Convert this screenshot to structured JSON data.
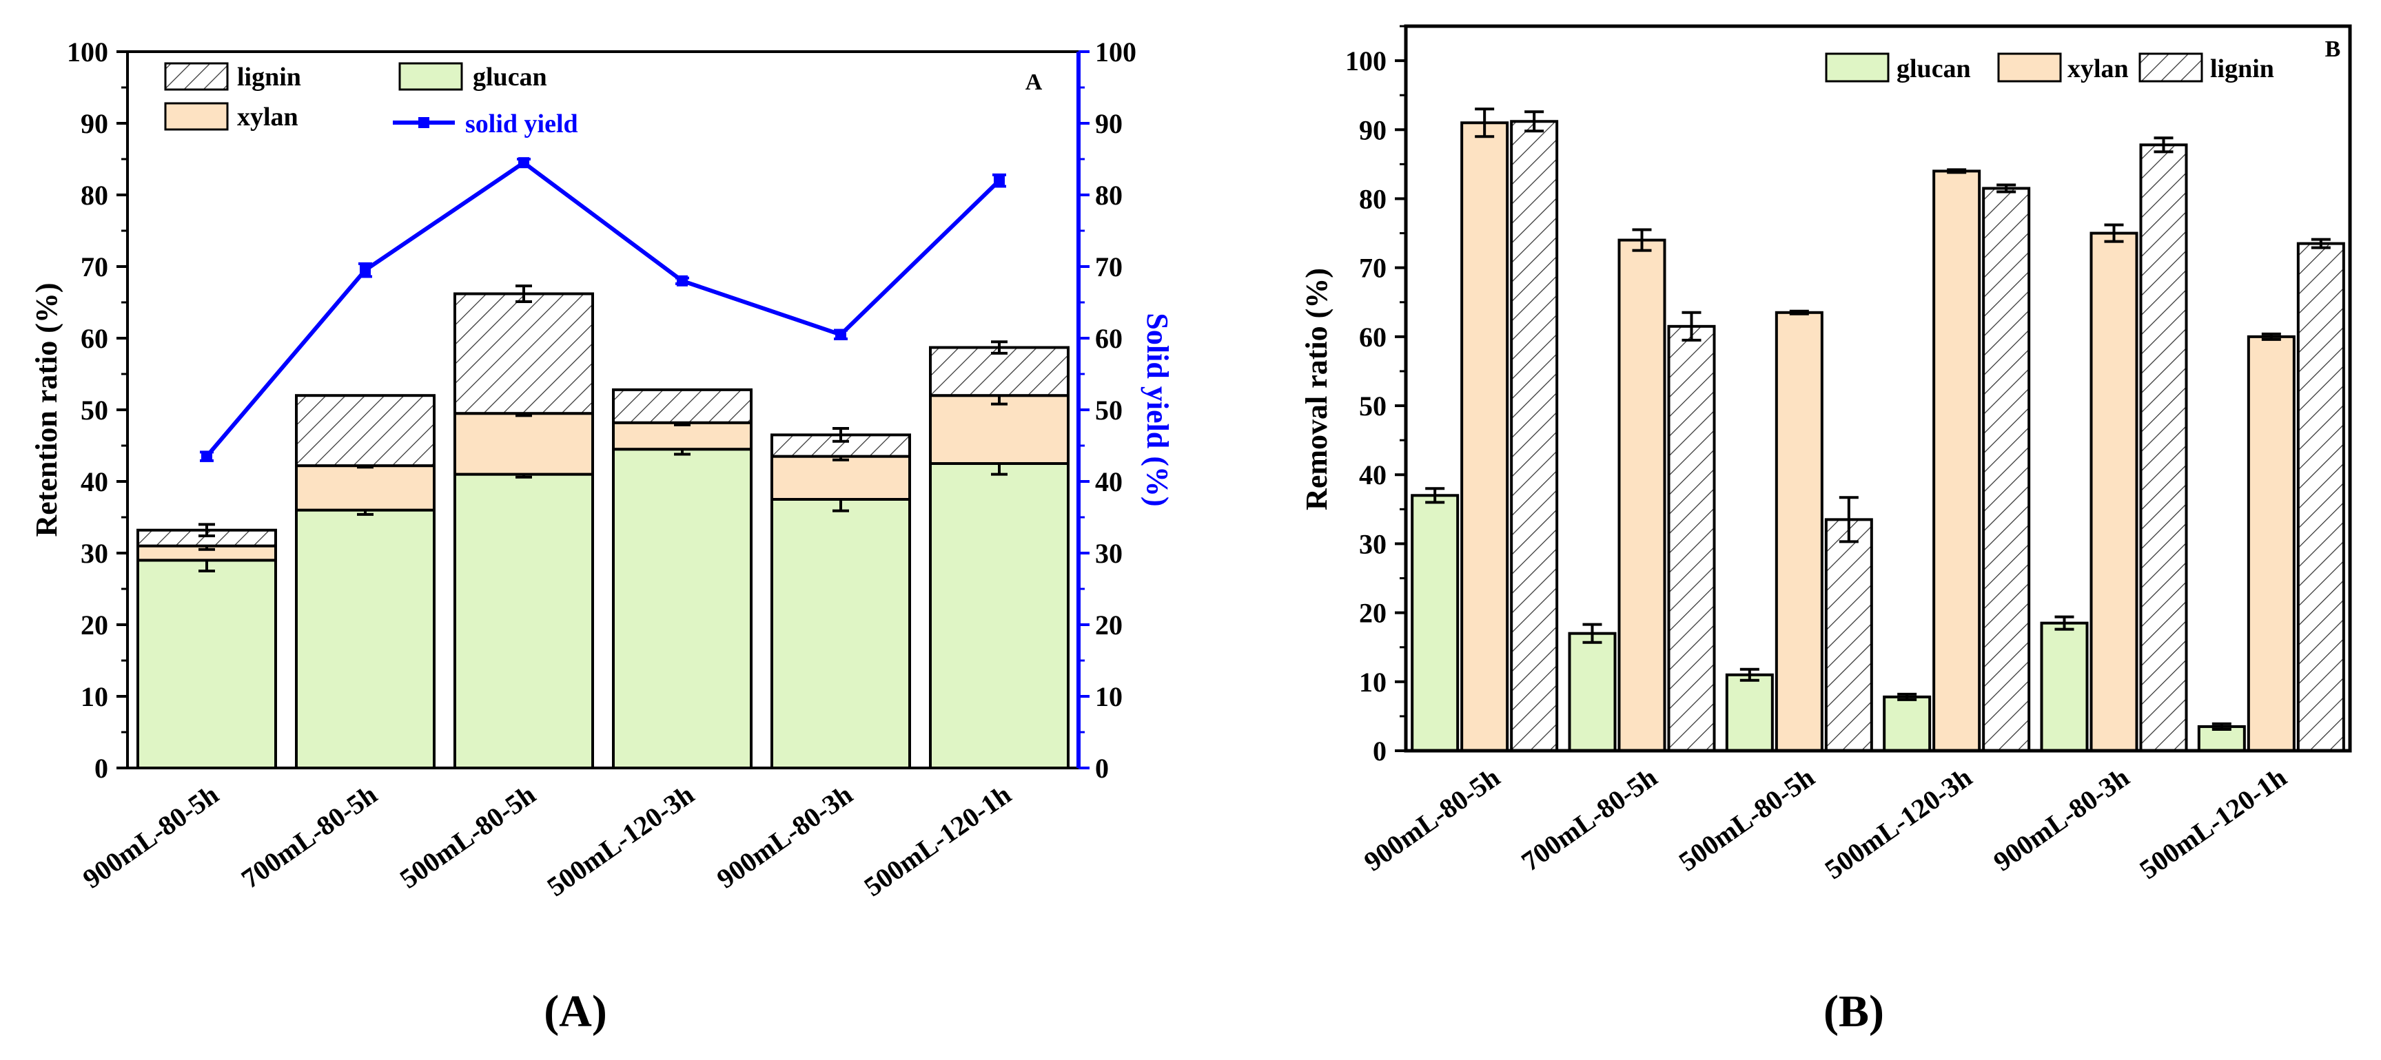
{
  "chart_data": [
    {
      "type": "bar",
      "stacked": true,
      "panel_letter": "A",
      "caption": "(A)",
      "categories": [
        "900mL-80-5h",
        "700mL-80-5h",
        "500mL-80-5h",
        "500mL-120-3h",
        "900mL-80-3h",
        "500mL-120-1h"
      ],
      "series": [
        {
          "name": "glucan",
          "color": "#dff5c5",
          "pattern": "solid",
          "values": [
            29.0,
            36.0,
            41.0,
            44.5,
            37.5,
            42.5
          ],
          "errors": [
            1.5,
            0.6,
            0.4,
            0.7,
            1.6,
            1.5
          ]
        },
        {
          "name": "xylan",
          "color": "#fde2c2",
          "pattern": "solid",
          "values": [
            2.0,
            6.2,
            8.5,
            3.7,
            6.0,
            9.5
          ],
          "errors": [
            0.5,
            0.2,
            0.3,
            0.3,
            0.5,
            1.2
          ]
        },
        {
          "name": "lignin",
          "color": "#ffffff",
          "pattern": "hatch",
          "values": [
            2.2,
            9.8,
            16.7,
            4.6,
            3.0,
            6.7
          ],
          "errors": [
            0.8,
            0.0,
            1.1,
            0.0,
            0.9,
            0.8
          ]
        }
      ],
      "line_series": {
        "name": "solid yield",
        "color": "#0000ff",
        "values": [
          43.5,
          69.5,
          84.5,
          68.0,
          60.5,
          82.0
        ],
        "errors": [
          0.6,
          0.9,
          0.5,
          0.4,
          0.6,
          0.8
        ]
      },
      "ylabel": "Retention ratio (%)",
      "y2label": "Solid yield (%)",
      "ylim": [
        0,
        100
      ],
      "y2lim": [
        0,
        100
      ],
      "yticks": [
        0,
        10,
        20,
        30,
        40,
        50,
        60,
        70,
        80,
        90,
        100
      ],
      "legend": [
        "lignin",
        "glucan",
        "xylan",
        "solid yield"
      ],
      "legend_position": "top-left"
    },
    {
      "type": "bar",
      "stacked": false,
      "panel_letter": "B",
      "caption": "(B)",
      "categories": [
        "900mL-80-5h",
        "700mL-80-5h",
        "500mL-80-5h",
        "500mL-120-3h",
        "900mL-80-3h",
        "500mL-120-1h"
      ],
      "series": [
        {
          "name": "glucan",
          "color": "#dff5c5",
          "pattern": "solid",
          "values": [
            37.0,
            17.0,
            11.0,
            7.8,
            18.5,
            3.5
          ],
          "errors": [
            1.0,
            1.3,
            0.8,
            0.4,
            0.9,
            0.4
          ]
        },
        {
          "name": "xylan",
          "color": "#fde2c2",
          "pattern": "solid",
          "values": [
            91.0,
            74.0,
            63.5,
            84.0,
            75.0,
            60.0
          ],
          "errors": [
            2.0,
            1.5,
            0.2,
            0.2,
            1.2,
            0.4
          ]
        },
        {
          "name": "lignin",
          "color": "#ffffff",
          "pattern": "hatch",
          "values": [
            91.2,
            61.5,
            33.5,
            81.5,
            87.8,
            73.5
          ],
          "errors": [
            1.4,
            2.0,
            3.2,
            0.5,
            1.0,
            0.6
          ]
        }
      ],
      "ylabel": "Removal ratio (%)",
      "ylim": [
        0,
        105
      ],
      "yticks": [
        0,
        10,
        20,
        30,
        40,
        50,
        60,
        70,
        80,
        90,
        100
      ],
      "legend": [
        "glucan",
        "xylan",
        "lignin"
      ],
      "legend_position": "top-right"
    }
  ]
}
